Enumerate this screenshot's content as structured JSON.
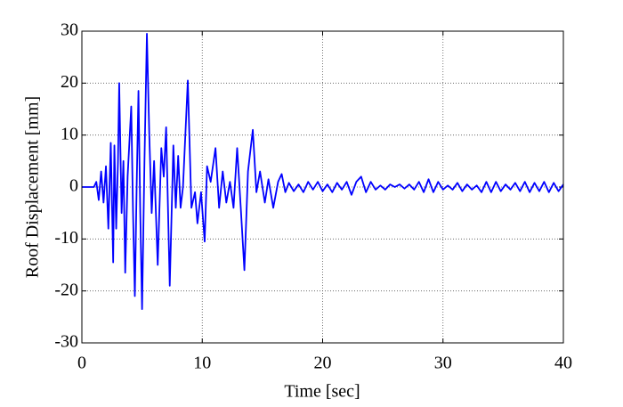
{
  "chart_data": {
    "type": "line",
    "xlabel": "Time [sec]",
    "ylabel": "Roof Displacement [mm]",
    "xlim": [
      0,
      40
    ],
    "ylim": [
      -30,
      30
    ],
    "xticks": [
      0,
      10,
      20,
      30,
      40
    ],
    "yticks": [
      -30,
      -20,
      -10,
      0,
      10,
      20,
      30
    ],
    "grid": true,
    "series": [
      {
        "color": "#0000ff",
        "x": [
          0,
          0.5,
          1.0,
          1.2,
          1.4,
          1.6,
          1.8,
          2.0,
          2.2,
          2.4,
          2.6,
          2.7,
          2.85,
          3.0,
          3.1,
          3.3,
          3.45,
          3.6,
          3.8,
          4.1,
          4.25,
          4.4,
          4.55,
          4.7,
          4.85,
          5.0,
          5.2,
          5.4,
          5.6,
          5.8,
          6.0,
          6.3,
          6.6,
          6.8,
          7.0,
          7.3,
          7.6,
          7.8,
          8.0,
          8.2,
          8.4,
          8.8,
          9.1,
          9.4,
          9.6,
          9.9,
          10.2,
          10.4,
          10.7,
          11.1,
          11.4,
          11.7,
          12.0,
          12.3,
          12.6,
          12.9,
          13.2,
          13.5,
          13.8,
          14.2,
          14.5,
          14.8,
          15.2,
          15.5,
          15.9,
          16.3,
          16.6,
          16.9,
          17.2,
          17.6,
          18.0,
          18.4,
          18.8,
          19.2,
          19.6,
          20.0,
          20.4,
          20.8,
          21.2,
          21.6,
          22.0,
          22.4,
          22.8,
          23.2,
          23.6,
          24.0,
          24.4,
          24.8,
          25.2,
          25.6,
          26.0,
          26.4,
          26.8,
          27.2,
          27.6,
          28.0,
          28.4,
          28.8,
          29.2,
          29.6,
          30.0,
          30.4,
          30.8,
          31.2,
          31.6,
          32.0,
          32.4,
          32.8,
          33.2,
          33.6,
          34.0,
          34.4,
          34.8,
          35.2,
          35.6,
          36.0,
          36.4,
          36.8,
          37.2,
          37.6,
          38.0,
          38.4,
          38.8,
          39.2,
          39.6,
          40.0
        ],
        "values": [
          0,
          0,
          0,
          1,
          -2.5,
          3,
          -3,
          4,
          -8,
          8.5,
          -14.5,
          8,
          -8,
          5,
          20,
          -5,
          5,
          -16.5,
          2,
          15.5,
          -5,
          -21,
          0,
          18.5,
          -5,
          -23.5,
          5,
          29.5,
          10,
          -5,
          5,
          -15,
          7.5,
          2,
          11.5,
          -19,
          8,
          -4,
          6,
          -4,
          0,
          20.5,
          -4,
          -1,
          -7,
          -1,
          -10.5,
          4,
          1,
          7.5,
          -4,
          3,
          -3,
          1,
          -4,
          7.5,
          -4,
          -16,
          3,
          11,
          -1,
          3,
          -3,
          1.5,
          -4,
          1,
          2.5,
          -1,
          0.8,
          -0.8,
          0.5,
          -1,
          1,
          -0.5,
          1,
          -0.8,
          0.5,
          -1,
          0.8,
          -0.5,
          1,
          -1.5,
          1,
          2,
          -1,
          1,
          -0.5,
          0.3,
          -0.5,
          0.5,
          0,
          0.5,
          -0.3,
          0.5,
          -0.5,
          1,
          -1,
          1.5,
          -1,
          1,
          -0.5,
          0.3,
          -0.5,
          0.8,
          -0.8,
          0.5,
          -0.5,
          0.3,
          -1,
          1,
          -1,
          1,
          -0.8,
          0.5,
          -0.5,
          0.8,
          -0.8,
          1,
          -1,
          0.8,
          -0.8,
          1,
          -1,
          0.8,
          -0.8,
          0.5
        ]
      }
    ]
  }
}
